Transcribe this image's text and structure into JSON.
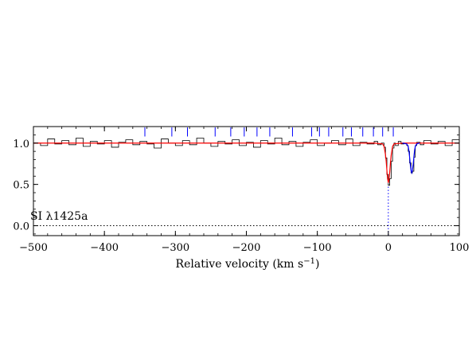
{
  "chart_data": {
    "type": "line",
    "title": "",
    "xlabel": "Relative velocity (km s",
    "xlabel_sup": "−1",
    "xlabel_close": ")",
    "ylabel": "",
    "xlim": [
      -500,
      100
    ],
    "ylim": [
      -0.12,
      1.2
    ],
    "x_ticks": [
      -500,
      -400,
      -300,
      -200,
      -100,
      0,
      100
    ],
    "x_tick_labels": [
      "−500",
      "−400",
      "−300",
      "−200",
      "−100",
      "0",
      "100"
    ],
    "y_ticks": [
      0.0,
      0.5,
      1.0
    ],
    "y_tick_labels": [
      "0.0",
      "0.5",
      "1.0"
    ],
    "annotation": "SI λ1425a",
    "grid": false,
    "reference_lines": [
      {
        "orientation": "horizontal",
        "y": 0.0,
        "style": "dotted",
        "color": "#000000"
      },
      {
        "orientation": "vertical",
        "x": 0,
        "y_from": -0.12,
        "y_to": 0.5,
        "style": "dotted",
        "color": "#0000ff"
      }
    ],
    "tick_marks_blue": {
      "y_range": [
        1.08,
        1.19
      ],
      "x": [
        -343,
        -305,
        -283,
        -244,
        -222,
        -203,
        -185,
        -167,
        -135,
        -108,
        -97,
        -84,
        -64,
        -52,
        -36,
        -21,
        -8,
        7
      ]
    },
    "series": [
      {
        "style": "step",
        "color": "#000000",
        "x": [
          -500,
          -490,
          -480,
          -470,
          -460,
          -450,
          -440,
          -430,
          -420,
          -410,
          -400,
          -390,
          -380,
          -370,
          -360,
          -350,
          -340,
          -330,
          -320,
          -310,
          -300,
          -290,
          -280,
          -270,
          -260,
          -250,
          -240,
          -230,
          -220,
          -210,
          -200,
          -190,
          -180,
          -170,
          -160,
          -150,
          -140,
          -130,
          -120,
          -110,
          -100,
          -90,
          -80,
          -70,
          -60,
          -50,
          -40,
          -30,
          -20,
          -15,
          -10,
          -6,
          -4,
          -2,
          0,
          2,
          4,
          6,
          8,
          10,
          14,
          18,
          22,
          26,
          28,
          30,
          32,
          34,
          36,
          38,
          40,
          45,
          50,
          60,
          70,
          80,
          90,
          100
        ],
        "y": [
          1.0,
          0.97,
          1.05,
          0.99,
          1.03,
          0.98,
          1.06,
          0.96,
          1.02,
          0.99,
          1.03,
          0.95,
          1.01,
          1.04,
          0.98,
          1.02,
          0.99,
          0.94,
          1.05,
          1.0,
          0.97,
          1.03,
          0.98,
          1.06,
          1.0,
          0.96,
          1.02,
          0.99,
          1.04,
          0.97,
          1.01,
          0.95,
          1.03,
          0.99,
          1.06,
          0.98,
          1.02,
          0.96,
          1.01,
          1.04,
          0.97,
          1.0,
          1.03,
          0.98,
          1.05,
          0.97,
          1.01,
          0.99,
          1.02,
          0.98,
          1.0,
          0.95,
          0.82,
          0.62,
          0.49,
          0.57,
          0.78,
          0.94,
          1.0,
          0.97,
          1.02,
          0.99,
          1.0,
          0.97,
          0.9,
          0.76,
          0.64,
          0.66,
          0.83,
          0.97,
          1.01,
          0.98,
          1.03,
          0.99,
          1.02,
          0.97,
          1.04,
          1.0
        ]
      },
      {
        "style": "line",
        "color": "#ff0000",
        "x": [
          -500,
          -20,
          -8,
          -6,
          -4,
          -3,
          -2,
          -1,
          0,
          1,
          2,
          3,
          4,
          6,
          8,
          20,
          100
        ],
        "y": [
          1.0,
          1.0,
          0.99,
          0.96,
          0.86,
          0.78,
          0.67,
          0.57,
          0.52,
          0.56,
          0.65,
          0.76,
          0.85,
          0.96,
          0.99,
          1.0,
          1.0
        ]
      },
      {
        "style": "line",
        "color": "#0000ff",
        "x": [
          20,
          26,
          28,
          29,
          30,
          31,
          32,
          33,
          34,
          35,
          36,
          37,
          38,
          40,
          44
        ],
        "y": [
          1.0,
          0.99,
          0.96,
          0.91,
          0.83,
          0.74,
          0.67,
          0.64,
          0.67,
          0.74,
          0.83,
          0.91,
          0.96,
          0.99,
          1.0
        ]
      }
    ]
  }
}
